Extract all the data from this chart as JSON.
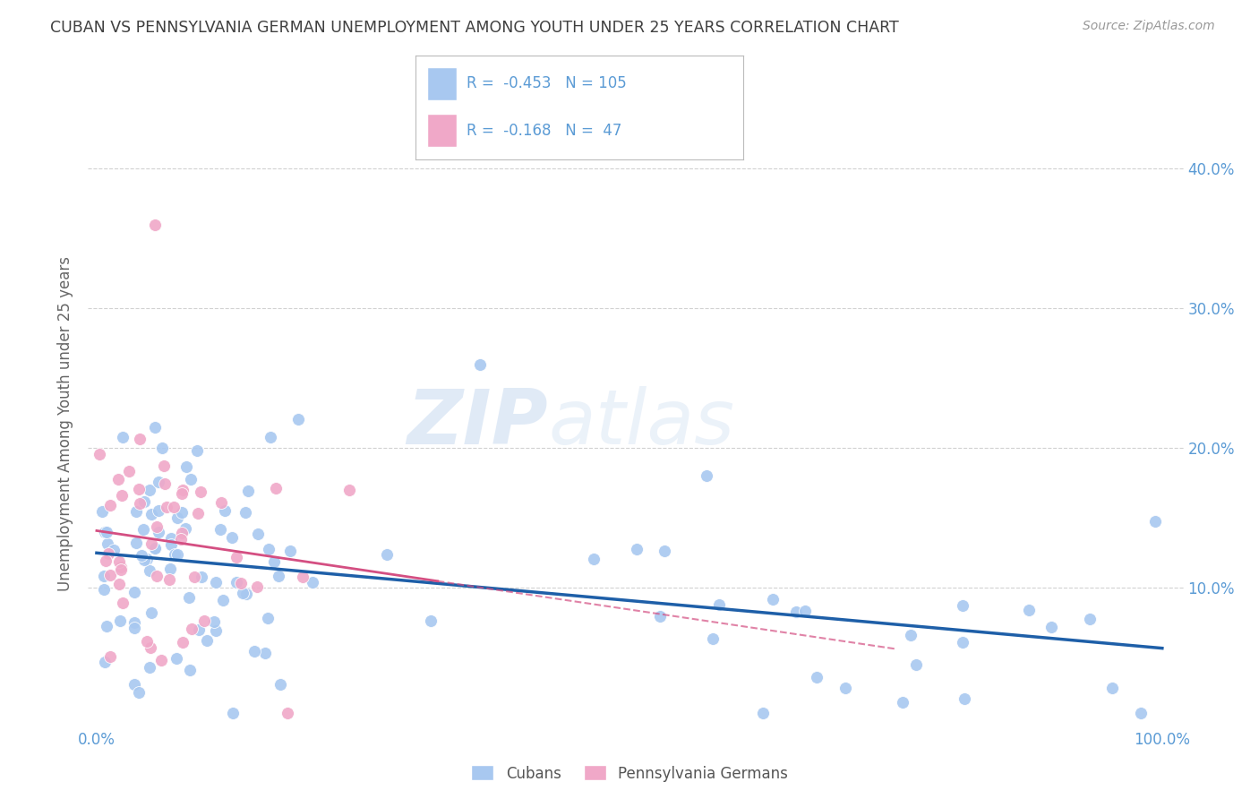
{
  "title": "CUBAN VS PENNSYLVANIA GERMAN UNEMPLOYMENT AMONG YOUTH UNDER 25 YEARS CORRELATION CHART",
  "source": "Source: ZipAtlas.com",
  "ylabel": "Unemployment Among Youth under 25 years",
  "legend_label1": "Cubans",
  "legend_label2": "Pennsylvania Germans",
  "r1": -0.453,
  "n1": 105,
  "r2": -0.168,
  "n2": 47,
  "watermark_zip": "ZIP",
  "watermark_atlas": "atlas",
  "blue_color": "#a8c8f0",
  "pink_color": "#f0a8c8",
  "blue_line_color": "#1e5fa8",
  "pink_line_color": "#d44f82",
  "axis_label_color": "#5b9bd5",
  "title_color": "#404040",
  "background_color": "#ffffff",
  "grid_color": "#cccccc",
  "blue_intercept": 0.135,
  "blue_slope": -0.098,
  "pink_intercept": 0.13,
  "pink_slope": -0.15
}
